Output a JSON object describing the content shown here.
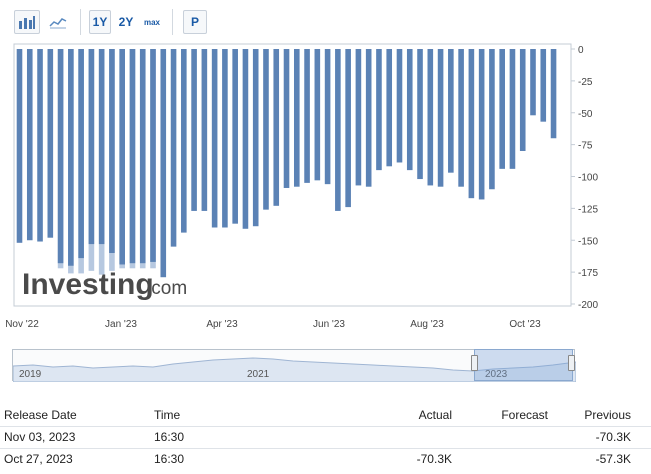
{
  "toolbar": {
    "bar_chart_icon": "bar-chart-icon",
    "area_chart_icon": "area-chart-icon",
    "range_1y": "1Y",
    "range_2y": "2Y",
    "range_max": "max",
    "print_label": "P"
  },
  "watermark": {
    "brand": "Investing",
    "suffix": ".com"
  },
  "chart_data": {
    "type": "bar",
    "x_tick_labels": [
      "Nov '22",
      "Jan '23",
      "Apr '23",
      "Jun '23",
      "Aug '23",
      "Oct '23"
    ],
    "y_ticks": [
      0,
      -25,
      -50,
      -75,
      -100,
      -125,
      -150,
      -175,
      -200
    ],
    "ylim": [
      -200,
      0
    ],
    "grid": false,
    "bar_color": "#5b82b5",
    "forecast_color": "#b6c8e0",
    "series": [
      {
        "values": [
          -152,
          -150,
          -151,
          -148,
          -168,
          -170,
          -164,
          -153,
          -153,
          -160,
          -169,
          -168,
          -168,
          -167,
          -179,
          -155,
          -144,
          -127,
          -127,
          -140,
          -140,
          -137,
          -141,
          -139,
          -126,
          -123,
          -109,
          -108,
          -105,
          -103,
          -106,
          -127,
          -124,
          -107,
          -108,
          -95,
          -92,
          -89,
          -95,
          -102,
          -107,
          -108,
          -97,
          -108,
          -117,
          -118,
          -110,
          -94,
          -94,
          -80,
          -52,
          -57,
          -70
        ]
      }
    ],
    "forecast_extensions": [
      {
        "index": 4,
        "value": -172
      },
      {
        "index": 5,
        "value": -176
      },
      {
        "index": 6,
        "value": -176
      },
      {
        "index": 7,
        "value": -174
      },
      {
        "index": 8,
        "value": -177
      },
      {
        "index": 9,
        "value": -174
      },
      {
        "index": 10,
        "value": -172
      },
      {
        "index": 11,
        "value": -172
      },
      {
        "index": 12,
        "value": -172
      },
      {
        "index": 13,
        "value": -172
      }
    ]
  },
  "navigator": {
    "years": [
      "2019",
      "2021",
      "2023"
    ],
    "window_start_fraction": 0.82,
    "window_end_fraction": 1.0
  },
  "release_table": {
    "headers": [
      "Release Date",
      "Time",
      "Actual",
      "Forecast",
      "Previous"
    ],
    "rows": [
      {
        "date": "Nov 03, 2023",
        "time": "16:30",
        "actual": "",
        "forecast": "",
        "previous": "-70.3K"
      },
      {
        "date": "Oct 27, 2023",
        "time": "16:30",
        "actual": "-70.3K",
        "forecast": "",
        "previous": "-57.3K"
      }
    ]
  }
}
